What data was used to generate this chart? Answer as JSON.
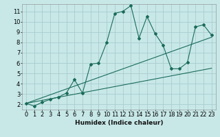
{
  "xlabel": "Humidex (Indice chaleur)",
  "bg_color": "#c8e8e8",
  "grid_color": "#a8cccc",
  "line_color": "#1a6b5a",
  "x_ticks": [
    0,
    1,
    2,
    3,
    4,
    5,
    6,
    7,
    8,
    9,
    10,
    11,
    12,
    13,
    14,
    15,
    16,
    17,
    18,
    19,
    20,
    21,
    22,
    23
  ],
  "y_ticks": [
    2,
    3,
    4,
    5,
    6,
    7,
    8,
    9,
    10,
    11
  ],
  "xlim": [
    -0.5,
    23.5
  ],
  "ylim": [
    1.5,
    11.7
  ],
  "main_x": [
    0,
    1,
    2,
    3,
    4,
    5,
    6,
    7,
    8,
    9,
    10,
    11,
    12,
    13,
    14,
    15,
    16,
    17,
    18,
    19,
    20,
    21,
    22,
    23
  ],
  "main_y": [
    2.1,
    1.85,
    2.2,
    2.5,
    2.7,
    3.1,
    4.4,
    3.1,
    5.9,
    6.0,
    8.0,
    10.8,
    11.0,
    11.55,
    8.4,
    10.5,
    8.85,
    7.7,
    5.45,
    5.45,
    6.05,
    9.5,
    9.7,
    8.7
  ],
  "trend1_x": [
    0,
    23
  ],
  "trend1_y": [
    2.1,
    5.5
  ],
  "trend2_x": [
    0,
    23
  ],
  "trend2_y": [
    2.1,
    8.5
  ],
  "xlabel_fontsize": 6.5,
  "tick_fontsize": 6
}
